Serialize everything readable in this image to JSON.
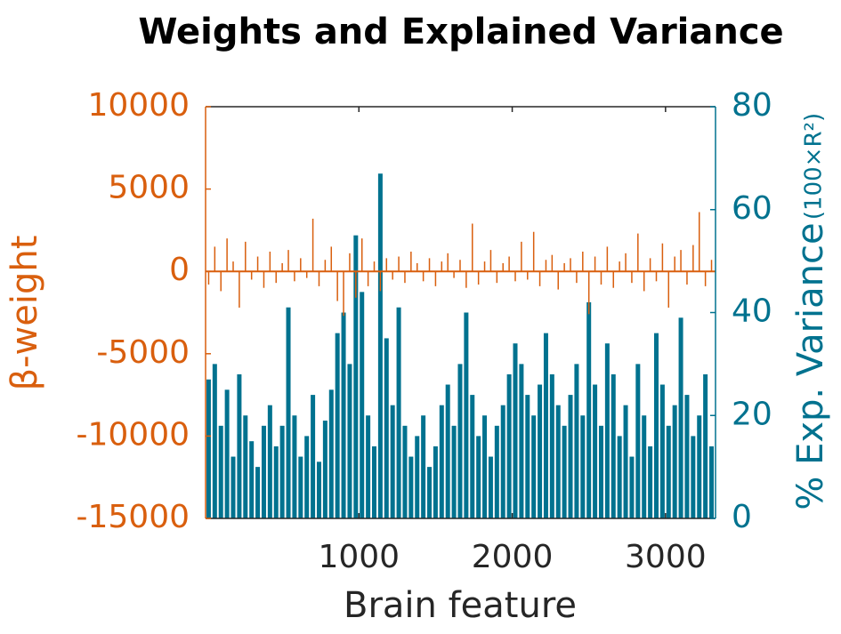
{
  "chart_data": {
    "type": "bar",
    "title": "Weights and Explained Variance",
    "xlabel": "Brain feature",
    "ylabel": "β-weight",
    "y2label": "% Exp. Variance",
    "y2label_unit": "(100×R²)",
    "x": [
      20,
      60,
      100,
      140,
      180,
      220,
      260,
      300,
      340,
      380,
      420,
      460,
      500,
      540,
      580,
      620,
      660,
      700,
      740,
      780,
      820,
      860,
      900,
      940,
      980,
      1020,
      1060,
      1100,
      1140,
      1180,
      1220,
      1260,
      1300,
      1340,
      1380,
      1420,
      1460,
      1500,
      1540,
      1580,
      1620,
      1660,
      1700,
      1740,
      1780,
      1820,
      1860,
      1900,
      1940,
      1980,
      2020,
      2060,
      2100,
      2140,
      2180,
      2220,
      2260,
      2300,
      2340,
      2380,
      2420,
      2460,
      2500,
      2540,
      2580,
      2620,
      2660,
      2700,
      2740,
      2780,
      2820,
      2860,
      2900,
      2940,
      2980,
      3020,
      3060,
      3100,
      3140,
      3180,
      3220,
      3260,
      3300
    ],
    "series": [
      {
        "name": "% Exp. Variance",
        "color": "#00728f",
        "axis": "y2",
        "values": [
          27,
          30,
          18,
          25,
          12,
          28,
          20,
          15,
          10,
          18,
          22,
          14,
          18,
          41,
          20,
          12,
          16,
          24,
          11,
          19,
          25,
          36,
          40,
          30,
          55,
          44,
          20,
          14,
          67,
          35,
          22,
          41,
          18,
          12,
          16,
          20,
          10,
          14,
          22,
          26,
          18,
          30,
          40,
          24,
          16,
          20,
          12,
          18,
          22,
          28,
          34,
          30,
          24,
          20,
          26,
          36,
          28,
          22,
          18,
          24,
          30,
          20,
          42,
          26,
          18,
          34,
          28,
          16,
          22,
          12,
          30,
          20,
          14,
          36,
          26,
          18,
          22,
          39,
          24,
          16,
          20,
          28,
          14
        ]
      },
      {
        "name": "β-weight",
        "color": "#d95f0e",
        "values": [
          -800,
          1500,
          -1200,
          2000,
          600,
          -2200,
          1800,
          -500,
          900,
          -1000,
          1200,
          -700,
          500,
          1300,
          -600,
          800,
          -400,
          3200,
          -900,
          700,
          1500,
          -1800,
          -2700,
          1100,
          -1600,
          2000,
          -900,
          600,
          -1200,
          800,
          -500,
          900,
          -700,
          1200,
          500,
          -600,
          800,
          -900,
          600,
          1100,
          -400,
          700,
          -1000,
          2900,
          -800,
          600,
          1300,
          -700,
          500,
          900,
          -600,
          1800,
          -500,
          2400,
          -900,
          700,
          1000,
          -1100,
          500,
          800,
          -700,
          1200,
          -2600,
          900,
          -800,
          1500,
          -1000,
          600,
          1100,
          -700,
          2300,
          -1200,
          800,
          -600,
          1700,
          -2200,
          900,
          1300,
          -800,
          1600,
          3600,
          -900,
          700
        ]
      }
    ],
    "xlim": [
      0,
      3326
    ],
    "xticks": [
      1000,
      2000,
      3000
    ],
    "ylim": [
      -15000,
      10000
    ],
    "yticks": [
      -15000,
      -10000,
      -5000,
      0,
      5000,
      10000
    ],
    "y2lim": [
      0,
      80
    ],
    "y2ticks": [
      0,
      20,
      40,
      60,
      80
    ]
  }
}
